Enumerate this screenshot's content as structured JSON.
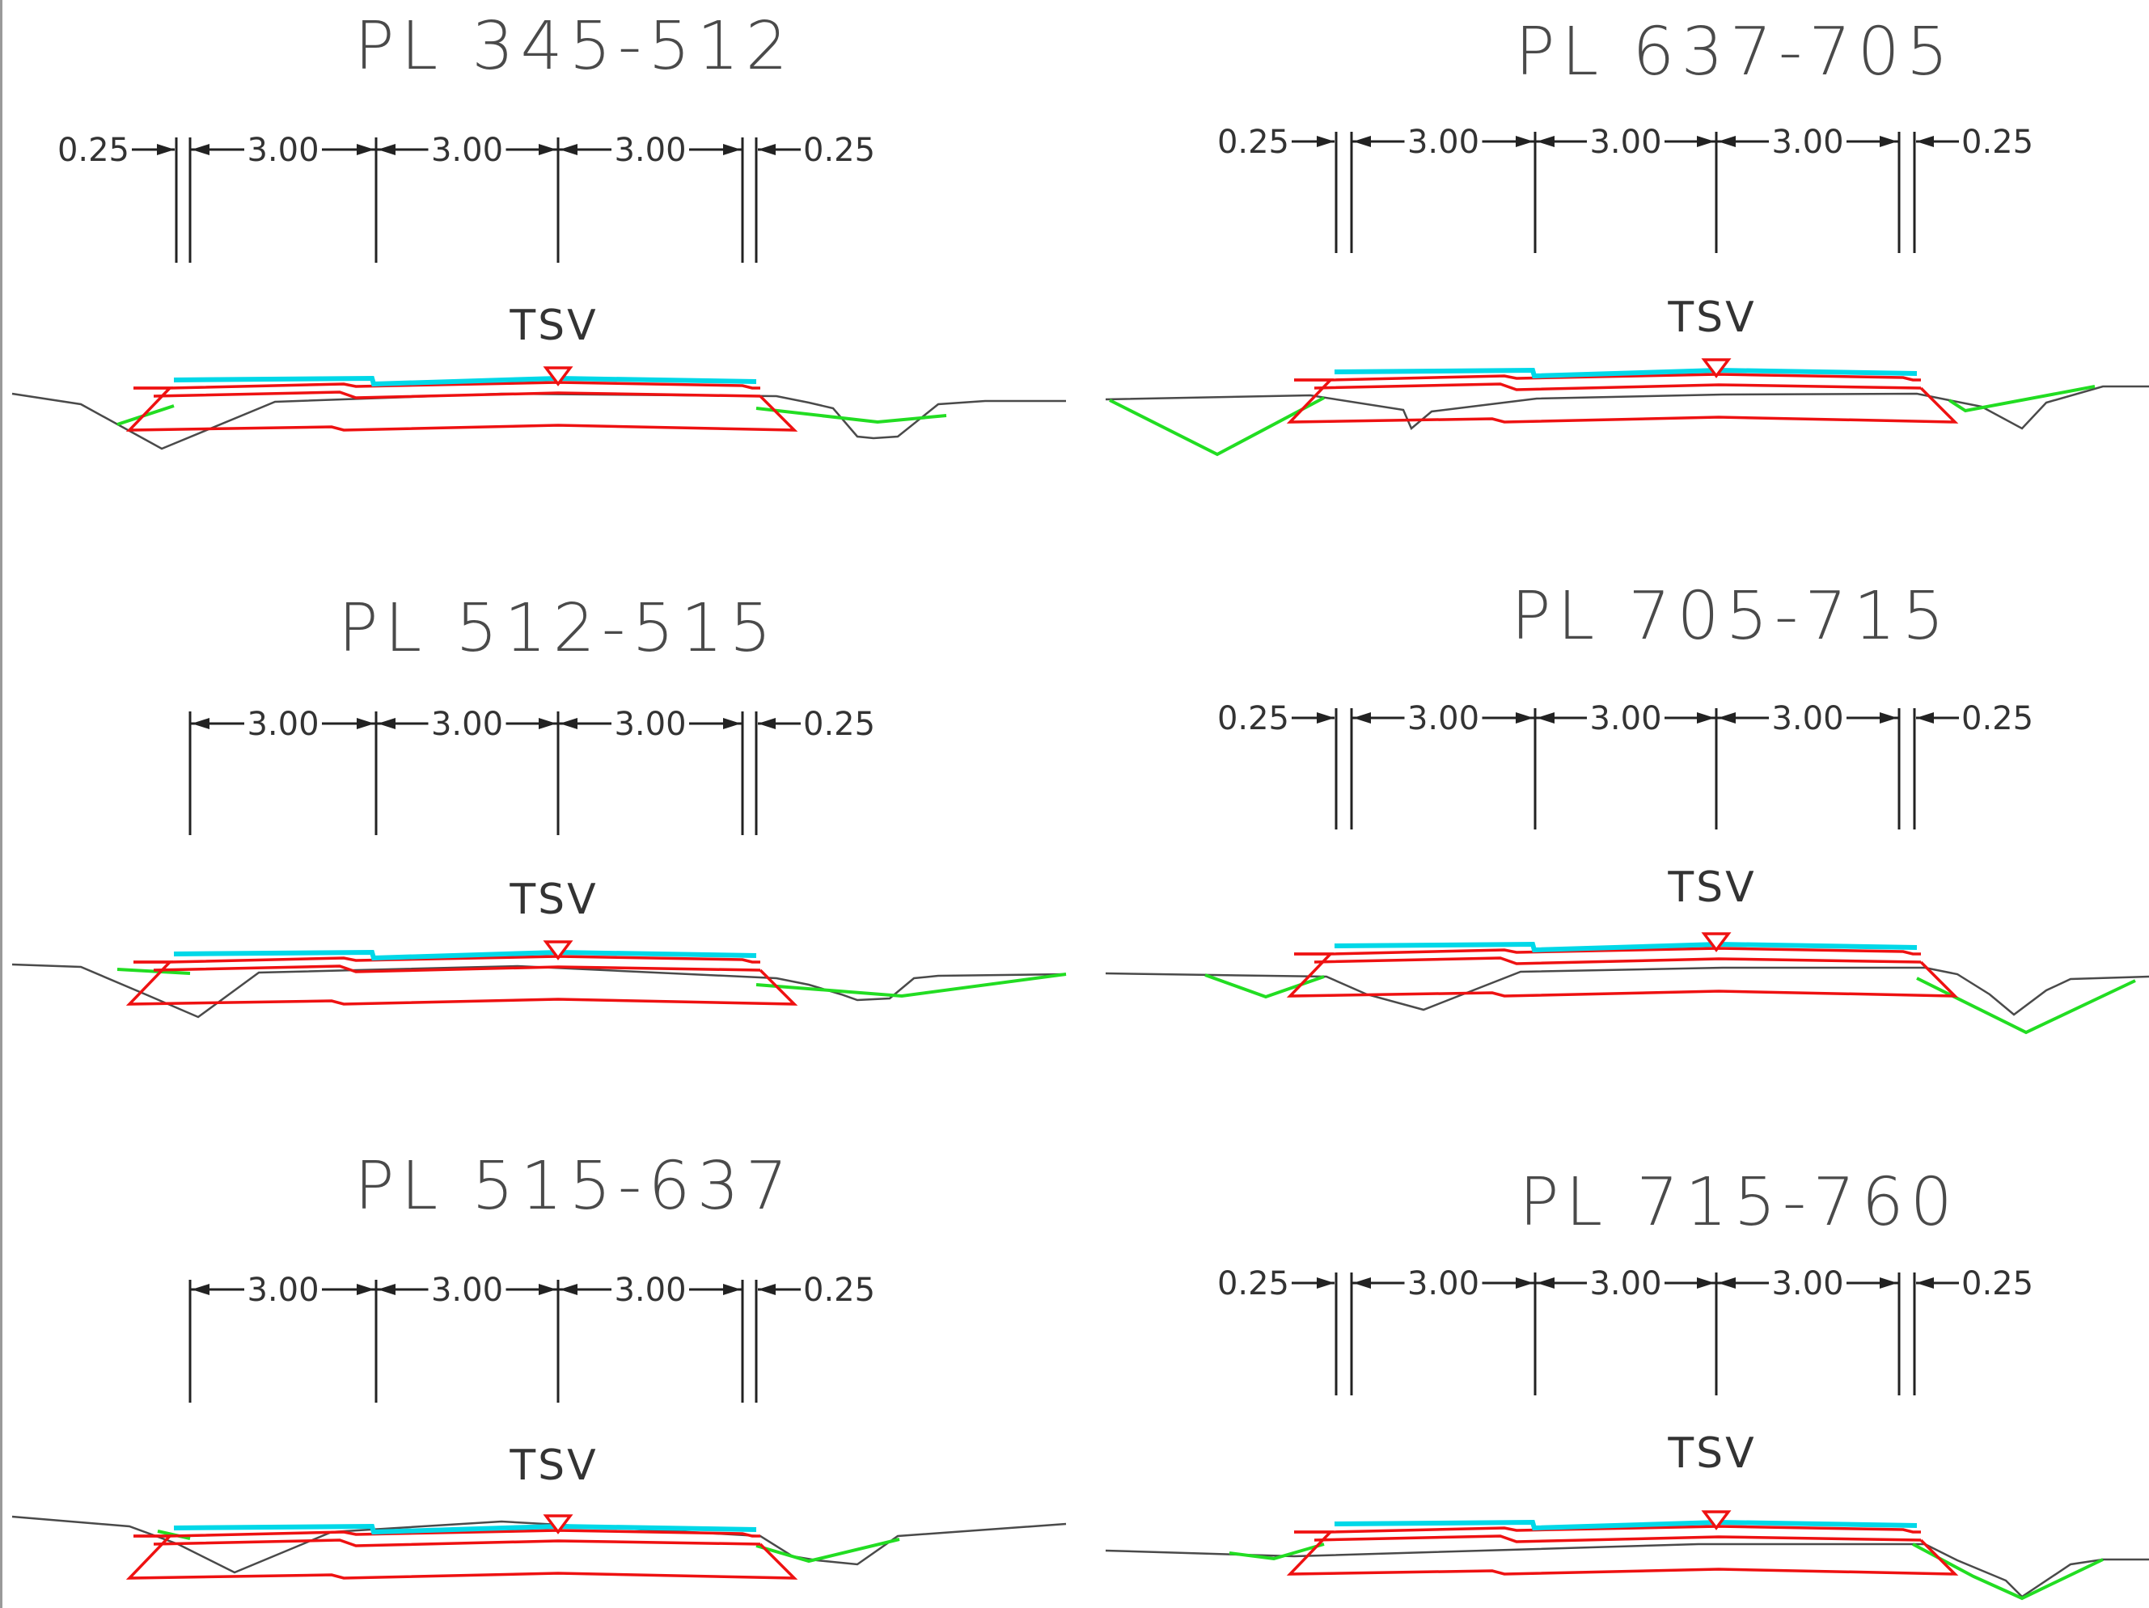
{
  "sections": [
    {
      "title": "PL  345-512",
      "left": "0.25",
      "spans": [
        "3.00",
        "3.00",
        "3.00"
      ],
      "right": "0.25",
      "marker_label": "TSV"
    },
    {
      "title": "PL  637-705",
      "left": "0.25",
      "spans": [
        "3.00",
        "3.00",
        "3.00"
      ],
      "right": "0.25",
      "marker_label": "TSV"
    },
    {
      "title": "PL  512-515",
      "left": "",
      "spans": [
        "3.00",
        "3.00",
        "3.00"
      ],
      "right": "0.25",
      "marker_label": "TSV"
    },
    {
      "title": "PL  705-715",
      "left": "0.25",
      "spans": [
        "3.00",
        "3.00",
        "3.00"
      ],
      "right": "0.25",
      "marker_label": "TSV"
    },
    {
      "title": "PL  515-637",
      "left": "",
      "spans": [
        "3.00",
        "3.00",
        "3.00"
      ],
      "right": "0.25",
      "marker_label": "TSV"
    },
    {
      "title": "PL  715-760",
      "left": "0.25",
      "spans": [
        "3.00",
        "3.00",
        "3.00"
      ],
      "right": "0.25",
      "marker_label": "TSV"
    }
  ],
  "colors": {
    "pavement_layers": "#ee1111",
    "surface_course": "#00d8e8",
    "cut_fill_slope": "#22dd22",
    "existing_ground": "#4a4a4a"
  }
}
